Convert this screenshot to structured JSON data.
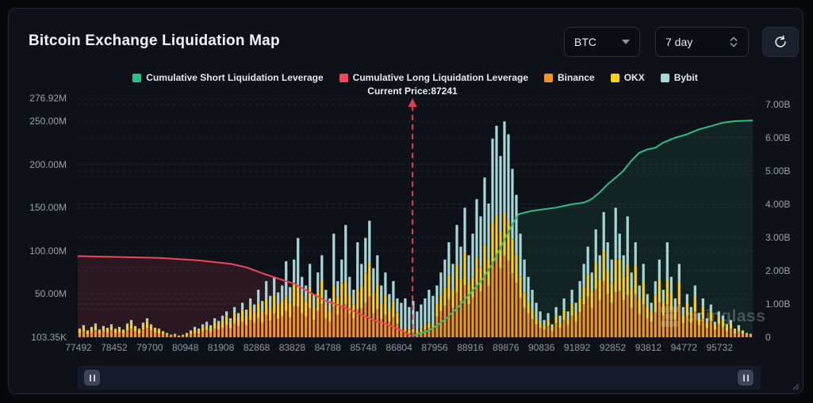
{
  "header": {
    "title": "Bitcoin Exchange Liquidation Map",
    "symbol_select": {
      "value": "BTC"
    },
    "period_select": {
      "value": "7 day"
    }
  },
  "legend": {
    "items": [
      {
        "label": "Cumulative Short Liquidation Leverage",
        "color": "#2ebd85"
      },
      {
        "label": "Cumulative Long Liquidation Leverage",
        "color": "#f6465d"
      },
      {
        "label": "Binance",
        "color": "#f7931a"
      },
      {
        "label": "OKX",
        "color": "#ffd014"
      },
      {
        "label": "Bybit",
        "color": "#a7d8d9"
      }
    ]
  },
  "annotation": {
    "current_price_label": "Current Price:87241"
  },
  "watermark": {
    "text": "coinglass"
  },
  "colors": {
    "long_line": "#f0455c",
    "short_line": "#2ebd85",
    "long_area": "rgba(240,69,92,0.13)",
    "short_area": "rgba(46,189,133,0.10)",
    "binance": "#f7931a",
    "okx": "#ffd014",
    "bybit": "#a7d8d9",
    "grid": "rgba(255,255,255,0.08)",
    "price_marker": "#e23b52"
  },
  "chart_data": {
    "type": "composite",
    "title": "Bitcoin Exchange Liquidation Map",
    "bar_value_unit": "USD millions (left axis)",
    "bar_series_order": [
      "Binance",
      "OKX",
      "Bybit"
    ],
    "current_price": 87241,
    "current_price_x_frac": 0.496,
    "left_axis": {
      "plot_max_m": 276.92,
      "ticks": [
        {
          "label": "276.92M",
          "m": 276.92
        },
        {
          "label": "250.00M",
          "m": 250
        },
        {
          "label": "200.00M",
          "m": 200
        },
        {
          "label": "150.00M",
          "m": 150
        },
        {
          "label": "100.00M",
          "m": 100
        },
        {
          "label": "50.00M",
          "m": 50
        },
        {
          "label": "103.35K",
          "m": 0.10335
        }
      ]
    },
    "right_axis": {
      "plot_max_b": 7.19,
      "ticks": [
        {
          "label": "7.00B",
          "b": 7
        },
        {
          "label": "6.00B",
          "b": 6
        },
        {
          "label": "5.00B",
          "b": 5
        },
        {
          "label": "4.00B",
          "b": 4
        },
        {
          "label": "3.00B",
          "b": 3
        },
        {
          "label": "2.00B",
          "b": 2
        },
        {
          "label": "1.00B",
          "b": 1
        },
        {
          "label": "0",
          "b": 0
        }
      ]
    },
    "x_axis_price_ticks": [
      "77492",
      "78452",
      "79700",
      "80948",
      "81908",
      "82868",
      "83828",
      "84788",
      "85748",
      "86804",
      "87956",
      "88916",
      "89876",
      "90836",
      "91892",
      "92852",
      "93812",
      "94772",
      "95732"
    ],
    "bars": [
      [
        5,
        4,
        1
      ],
      [
        7,
        5,
        2
      ],
      [
        4,
        3,
        1
      ],
      [
        6,
        4,
        2
      ],
      [
        8,
        6,
        2
      ],
      [
        5,
        3,
        1
      ],
      [
        7,
        4,
        2
      ],
      [
        6,
        4,
        1
      ],
      [
        8,
        5,
        2
      ],
      [
        5,
        4,
        1
      ],
      [
        6,
        4,
        2
      ],
      [
        5,
        3,
        1
      ],
      [
        8,
        6,
        2
      ],
      [
        10,
        7,
        3
      ],
      [
        7,
        4,
        2
      ],
      [
        5,
        4,
        1
      ],
      [
        9,
        6,
        2
      ],
      [
        11,
        8,
        3
      ],
      [
        8,
        5,
        2
      ],
      [
        6,
        4,
        1
      ],
      [
        5,
        4,
        1
      ],
      [
        4,
        2,
        1
      ],
      [
        3,
        1,
        1
      ],
      [
        2,
        1,
        0
      ],
      [
        2,
        1,
        1
      ],
      [
        1,
        1,
        0
      ],
      [
        2,
        1,
        0
      ],
      [
        2,
        2,
        1
      ],
      [
        4,
        3,
        1
      ],
      [
        5,
        4,
        3
      ],
      [
        5,
        3,
        2
      ],
      [
        7,
        5,
        3
      ],
      [
        8,
        6,
        4
      ],
      [
        6,
        5,
        3
      ],
      [
        10,
        8,
        4
      ],
      [
        9,
        6,
        4
      ],
      [
        11,
        9,
        5
      ],
      [
        14,
        10,
        6
      ],
      [
        10,
        8,
        4
      ],
      [
        16,
        12,
        7
      ],
      [
        13,
        10,
        5
      ],
      [
        18,
        14,
        8
      ],
      [
        14,
        11,
        7
      ],
      [
        20,
        16,
        9
      ],
      [
        17,
        13,
        8
      ],
      [
        22,
        17,
        16
      ],
      [
        17,
        13,
        12
      ],
      [
        26,
        19,
        20
      ],
      [
        19,
        14,
        15
      ],
      [
        28,
        21,
        21
      ],
      [
        21,
        16,
        15
      ],
      [
        24,
        18,
        18
      ],
      [
        30,
        18,
        40
      ],
      [
        23,
        17,
        18
      ],
      [
        36,
        27,
        27
      ],
      [
        35,
        23,
        57
      ],
      [
        28,
        21,
        21
      ],
      [
        24,
        18,
        18
      ],
      [
        34,
        25,
        26
      ],
      [
        20,
        15,
        15
      ],
      [
        30,
        22,
        23
      ],
      [
        38,
        28,
        29
      ],
      [
        22,
        16,
        17
      ],
      [
        18,
        13,
        14
      ],
      [
        36,
        24,
        60
      ],
      [
        26,
        20,
        19
      ],
      [
        36,
        27,
        27
      ],
      [
        39,
        26,
        65
      ],
      [
        28,
        21,
        21
      ],
      [
        22,
        16,
        17
      ],
      [
        33,
        22,
        55
      ],
      [
        34,
        26,
        25
      ],
      [
        40,
        35,
        40
      ],
      [
        47,
        40,
        48
      ],
      [
        28,
        24,
        28
      ],
      [
        33,
        29,
        33
      ],
      [
        21,
        18,
        21
      ],
      [
        26,
        23,
        26
      ],
      [
        18,
        15,
        17
      ],
      [
        23,
        19,
        23
      ],
      [
        16,
        13,
        16
      ],
      [
        6,
        4,
        30
      ],
      [
        7,
        4,
        34
      ],
      [
        5,
        4,
        26
      ],
      [
        6,
        4,
        32
      ],
      [
        5,
        3,
        22
      ],
      [
        6,
        4,
        28
      ],
      [
        9,
        5,
        31
      ],
      [
        11,
        6,
        38
      ],
      [
        10,
        5,
        33
      ],
      [
        24,
        15,
        21
      ],
      [
        30,
        19,
        26
      ],
      [
        36,
        22,
        32
      ],
      [
        44,
        28,
        38
      ],
      [
        34,
        21,
        30
      ],
      [
        52,
        32,
        46
      ],
      [
        42,
        26,
        37
      ],
      [
        60,
        38,
        52
      ],
      [
        38,
        24,
        33
      ],
      [
        46,
        24,
        50
      ],
      [
        61,
        32,
        67
      ],
      [
        53,
        28,
        59
      ],
      [
        70,
        37,
        78
      ],
      [
        59,
        31,
        65
      ],
      [
        87,
        46,
        97
      ],
      [
        93,
        49,
        103
      ],
      [
        80,
        42,
        88
      ],
      [
        95,
        50,
        105
      ],
      [
        89,
        47,
        99
      ],
      [
        74,
        39,
        82
      ],
      [
        63,
        33,
        69
      ],
      [
        46,
        24,
        50
      ],
      [
        34,
        18,
        38
      ],
      [
        27,
        14,
        29
      ],
      [
        21,
        11,
        23
      ],
      [
        15,
        8,
        17
      ],
      [
        11,
        6,
        13
      ],
      [
        9,
        5,
        6
      ],
      [
        13,
        7,
        8
      ],
      [
        7,
        4,
        4
      ],
      [
        16,
        9,
        10
      ],
      [
        11,
        6,
        8
      ],
      [
        20,
        11,
        14
      ],
      [
        14,
        7,
        9
      ],
      [
        25,
        14,
        16
      ],
      [
        18,
        10,
        12
      ],
      [
        29,
        16,
        20
      ],
      [
        38,
        21,
        26
      ],
      [
        47,
        26,
        32
      ],
      [
        34,
        19,
        22
      ],
      [
        56,
        31,
        38
      ],
      [
        43,
        24,
        28
      ],
      [
        65,
        36,
        44
      ],
      [
        50,
        27,
        33
      ],
      [
        40,
        23,
        27
      ],
      [
        52,
        38,
        60
      ],
      [
        54,
        36,
        30
      ],
      [
        43,
        28,
        24
      ],
      [
        49,
        35,
        56
      ],
      [
        34,
        22,
        19
      ],
      [
        50,
        33,
        27
      ],
      [
        27,
        18,
        15
      ],
      [
        38,
        26,
        21
      ],
      [
        22,
        15,
        13
      ],
      [
        18,
        12,
        10
      ],
      [
        29,
        20,
        16
      ],
      [
        40,
        27,
        23
      ],
      [
        25,
        16,
        14
      ],
      [
        38,
        28,
        44
      ],
      [
        31,
        21,
        18
      ],
      [
        20,
        14,
        11
      ],
      [
        38,
        26,
        21
      ],
      [
        16,
        10,
        9
      ],
      [
        25,
        15,
        10
      ],
      [
        17,
        11,
        7
      ],
      [
        30,
        18,
        12
      ],
      [
        14,
        8,
        6
      ],
      [
        22,
        14,
        9
      ],
      [
        11,
        7,
        4
      ],
      [
        19,
        11,
        8
      ],
      [
        9,
        5,
        4
      ],
      [
        15,
        9,
        6
      ],
      [
        12,
        8,
        5
      ],
      [
        7,
        5,
        3
      ],
      [
        10,
        6,
        4
      ],
      [
        5,
        3,
        2
      ],
      [
        7,
        4,
        3
      ],
      [
        4,
        2,
        2
      ],
      [
        3,
        1,
        1
      ],
      [
        2,
        1,
        1
      ]
    ],
    "lines": {
      "cumulative_long_m": [
        [
          0,
          94
        ],
        [
          0.062,
          93
        ],
        [
          0.121,
          92
        ],
        [
          0.18,
          89
        ],
        [
          0.227,
          85
        ],
        [
          0.25,
          81
        ],
        [
          0.274,
          74
        ],
        [
          0.297,
          68
        ],
        [
          0.321,
          62
        ],
        [
          0.344,
          52
        ],
        [
          0.368,
          42
        ],
        [
          0.391,
          36
        ],
        [
          0.415,
          28
        ],
        [
          0.438,
          20
        ],
        [
          0.462,
          14
        ],
        [
          0.479,
          8
        ],
        [
          0.491,
          3
        ],
        [
          0.499,
          1
        ]
      ],
      "cumulative_short_b": [
        [
          0.497,
          0.05
        ],
        [
          0.52,
          0.2
        ],
        [
          0.532,
          0.35
        ],
        [
          0.548,
          0.6
        ],
        [
          0.568,
          1.0
        ],
        [
          0.585,
          1.4
        ],
        [
          0.6,
          1.75
        ],
        [
          0.614,
          2.2
        ],
        [
          0.629,
          2.8
        ],
        [
          0.644,
          3.4
        ],
        [
          0.653,
          3.7
        ],
        [
          0.662,
          3.75
        ],
        [
          0.673,
          3.8
        ],
        [
          0.691,
          3.85
        ],
        [
          0.709,
          3.9
        ],
        [
          0.72,
          3.95
        ],
        [
          0.732,
          4.0
        ],
        [
          0.75,
          4.05
        ],
        [
          0.761,
          4.15
        ],
        [
          0.773,
          4.35
        ],
        [
          0.785,
          4.6
        ],
        [
          0.797,
          4.8
        ],
        [
          0.808,
          5.0
        ],
        [
          0.82,
          5.3
        ],
        [
          0.832,
          5.55
        ],
        [
          0.844,
          5.65
        ],
        [
          0.856,
          5.7
        ],
        [
          0.867,
          5.85
        ],
        [
          0.885,
          6.0
        ],
        [
          0.902,
          6.1
        ],
        [
          0.92,
          6.25
        ],
        [
          0.938,
          6.35
        ],
        [
          0.955,
          6.45
        ],
        [
          0.973,
          6.5
        ],
        [
          1.0,
          6.52
        ]
      ]
    }
  }
}
